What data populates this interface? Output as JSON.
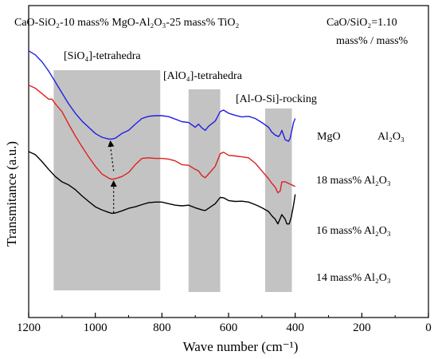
{
  "chart_data": {
    "type": "line",
    "title": {
      "main": "CaO-SiO₂-10 mass% MgO-Al₂O₃-25 mass% TiO₂",
      "ratio_line1": "CaO/SiO₂=1.10",
      "ratio_line2": "mass% / mass%"
    },
    "xlabel": "Wave number (cm⁻¹)",
    "ylabel": "Transmitance (a.u.)",
    "xlim": [
      1200,
      0
    ],
    "x_reversed": true,
    "xticks": [
      1200,
      1000,
      800,
      600,
      400,
      200,
      0
    ],
    "ylim": [
      0,
      1
    ],
    "grid": false,
    "bands": [
      {
        "label": "[SiO₄]-tetrahedra",
        "x_start": 1125,
        "x_end": 805
      },
      {
        "label": "[AlO₄]-tetrahedra",
        "x_start": 720,
        "x_end": 625
      },
      {
        "label": "[Al-O-Si]-rocking",
        "x_start": 490,
        "x_end": 410
      }
    ],
    "legend_headers": {
      "left": "MgO",
      "right": "Al₂O₃"
    },
    "series": [
      {
        "name": "18 mass% Al₂O₃",
        "color": "#1f1fe6",
        "points": [
          [
            1200,
            0.855
          ],
          [
            1180,
            0.842
          ],
          [
            1160,
            0.82
          ],
          [
            1140,
            0.79
          ],
          [
            1120,
            0.755
          ],
          [
            1100,
            0.72
          ],
          [
            1080,
            0.685
          ],
          [
            1060,
            0.655
          ],
          [
            1040,
            0.63
          ],
          [
            1020,
            0.61
          ],
          [
            1000,
            0.59
          ],
          [
            980,
            0.578
          ],
          [
            960,
            0.572
          ],
          [
            950,
            0.572
          ],
          [
            940,
            0.575
          ],
          [
            920,
            0.59
          ],
          [
            900,
            0.6
          ],
          [
            880,
            0.62
          ],
          [
            860,
            0.638
          ],
          [
            840,
            0.645
          ],
          [
            820,
            0.647
          ],
          [
            800,
            0.647
          ],
          [
            780,
            0.644
          ],
          [
            760,
            0.636
          ],
          [
            740,
            0.628
          ],
          [
            720,
            0.625
          ],
          [
            700,
            0.61
          ],
          [
            690,
            0.62
          ],
          [
            680,
            0.608
          ],
          [
            670,
            0.6
          ],
          [
            660,
            0.613
          ],
          [
            640,
            0.63
          ],
          [
            625,
            0.66
          ],
          [
            615,
            0.665
          ],
          [
            600,
            0.655
          ],
          [
            580,
            0.648
          ],
          [
            560,
            0.643
          ],
          [
            540,
            0.645
          ],
          [
            520,
            0.638
          ],
          [
            500,
            0.625
          ],
          [
            480,
            0.61
          ],
          [
            470,
            0.594
          ],
          [
            460,
            0.585
          ],
          [
            450,
            0.58
          ],
          [
            445,
            0.587
          ],
          [
            440,
            0.6
          ],
          [
            430,
            0.57
          ],
          [
            420,
            0.565
          ],
          [
            415,
            0.575
          ],
          [
            410,
            0.6
          ],
          [
            405,
            0.625
          ],
          [
            400,
            0.638
          ]
        ]
      },
      {
        "name": "16 mass% Al₂O₃",
        "color": "#e01f1f",
        "points": [
          [
            1200,
            0.745
          ],
          [
            1180,
            0.735
          ],
          [
            1160,
            0.718
          ],
          [
            1140,
            0.7
          ],
          [
            1130,
            0.7
          ],
          [
            1120,
            0.685
          ],
          [
            1100,
            0.66
          ],
          [
            1080,
            0.62
          ],
          [
            1060,
            0.582
          ],
          [
            1040,
            0.548
          ],
          [
            1020,
            0.515
          ],
          [
            1000,
            0.485
          ],
          [
            980,
            0.46
          ],
          [
            960,
            0.447
          ],
          [
            950,
            0.443
          ],
          [
            940,
            0.445
          ],
          [
            920,
            0.452
          ],
          [
            900,
            0.465
          ],
          [
            880,
            0.49
          ],
          [
            860,
            0.51
          ],
          [
            840,
            0.512
          ],
          [
            820,
            0.51
          ],
          [
            800,
            0.51
          ],
          [
            780,
            0.508
          ],
          [
            760,
            0.502
          ],
          [
            740,
            0.49
          ],
          [
            720,
            0.488
          ],
          [
            700,
            0.475
          ],
          [
            690,
            0.47
          ],
          [
            680,
            0.455
          ],
          [
            670,
            0.448
          ],
          [
            660,
            0.46
          ],
          [
            640,
            0.485
          ],
          [
            625,
            0.525
          ],
          [
            615,
            0.53
          ],
          [
            600,
            0.52
          ],
          [
            580,
            0.518
          ],
          [
            560,
            0.515
          ],
          [
            540,
            0.512
          ],
          [
            520,
            0.495
          ],
          [
            500,
            0.47
          ],
          [
            480,
            0.445
          ],
          [
            470,
            0.43
          ],
          [
            460,
            0.418
          ],
          [
            452,
            0.4
          ],
          [
            445,
            0.405
          ],
          [
            440,
            0.435
          ],
          [
            430,
            0.435
          ],
          [
            420,
            0.43
          ],
          [
            410,
            0.425
          ],
          [
            400,
            0.42
          ]
        ]
      },
      {
        "name": "14 mass% Al₂O₃",
        "color": "#000000",
        "points": [
          [
            1200,
            0.532
          ],
          [
            1180,
            0.522
          ],
          [
            1160,
            0.5
          ],
          [
            1140,
            0.475
          ],
          [
            1120,
            0.452
          ],
          [
            1100,
            0.435
          ],
          [
            1080,
            0.425
          ],
          [
            1060,
            0.41
          ],
          [
            1040,
            0.39
          ],
          [
            1020,
            0.372
          ],
          [
            1000,
            0.355
          ],
          [
            980,
            0.345
          ],
          [
            960,
            0.337
          ],
          [
            950,
            0.334
          ],
          [
            940,
            0.335
          ],
          [
            920,
            0.342
          ],
          [
            900,
            0.35
          ],
          [
            880,
            0.355
          ],
          [
            860,
            0.362
          ],
          [
            840,
            0.368
          ],
          [
            820,
            0.37
          ],
          [
            800,
            0.37
          ],
          [
            780,
            0.365
          ],
          [
            760,
            0.36
          ],
          [
            740,
            0.358
          ],
          [
            720,
            0.36
          ],
          [
            700,
            0.352
          ],
          [
            680,
            0.345
          ],
          [
            670,
            0.343
          ],
          [
            660,
            0.35
          ],
          [
            640,
            0.365
          ],
          [
            625,
            0.385
          ],
          [
            615,
            0.384
          ],
          [
            600,
            0.375
          ],
          [
            580,
            0.372
          ],
          [
            560,
            0.373
          ],
          [
            540,
            0.37
          ],
          [
            520,
            0.362
          ],
          [
            500,
            0.352
          ],
          [
            480,
            0.34
          ],
          [
            470,
            0.326
          ],
          [
            460,
            0.315
          ],
          [
            452,
            0.3
          ],
          [
            448,
            0.31
          ],
          [
            440,
            0.33
          ],
          [
            430,
            0.315
          ],
          [
            425,
            0.3
          ],
          [
            418,
            0.3
          ],
          [
            412,
            0.32
          ],
          [
            405,
            0.36
          ],
          [
            400,
            0.395
          ]
        ]
      }
    ],
    "annotations": {
      "arrows": [
        {
          "from": [
            945,
            0.336
          ],
          "to": [
            945,
            0.44
          ]
        },
        {
          "from": [
            945,
            0.47
          ],
          "to": [
            955,
            0.568
          ]
        }
      ]
    }
  }
}
